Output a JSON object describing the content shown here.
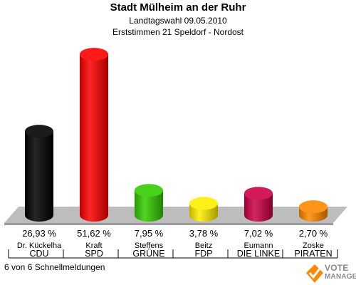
{
  "header": {
    "title": "Stadt Mülheim an der Ruhr",
    "subtitle1": "Landtagswahl 09.05.2010",
    "subtitle2": "Erststimmen 21 Speldorf - Nordost"
  },
  "footer": {
    "text": "6 von 6 Schnellmeldungen"
  },
  "logo": {
    "line1": "VOTE",
    "line2": "MANAGER",
    "icon": "checkmark-ballot-icon"
  },
  "chart_data": {
    "type": "bar",
    "categories": [
      "CDU",
      "SPD",
      "GRÜNE",
      "FDP",
      "DIE LINKE",
      "PIRATEN"
    ],
    "candidates": [
      "Dr. Kückelha",
      "Kraft",
      "Steffens",
      "Beitz",
      "Eumann",
      "Zoske"
    ],
    "values": [
      26.93,
      51.62,
      7.95,
      3.78,
      7.02,
      2.7
    ],
    "value_labels": [
      "26,93 %",
      "51,62 %",
      "7,95 %",
      "3,78 %",
      "7,02 %",
      "2,70 %"
    ],
    "colors": [
      "#000000",
      "#ff0000",
      "#33cc00",
      "#ffee00",
      "#cc0044",
      "#ff8800"
    ],
    "ylim": [
      0,
      53
    ]
  }
}
